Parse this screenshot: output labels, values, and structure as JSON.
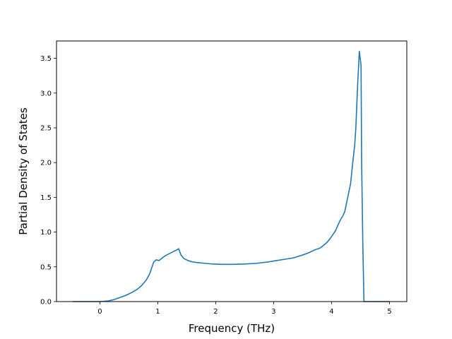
{
  "chart_data": {
    "type": "line",
    "title": "",
    "xlabel": "Frequency (THz)",
    "ylabel": "Partial Density of States",
    "xlim": [
      -0.75,
      5.3
    ],
    "ylim": [
      0.0,
      3.75
    ],
    "xticks": [
      0,
      1,
      2,
      3,
      4,
      5
    ],
    "yticks": [
      0.0,
      0.5,
      1.0,
      1.5,
      2.0,
      2.5,
      3.0,
      3.5
    ],
    "xtick_labels": [
      "0",
      "1",
      "2",
      "3",
      "4",
      "5"
    ],
    "ytick_labels": [
      "0.0",
      "0.5",
      "1.0",
      "1.5",
      "2.0",
      "2.5",
      "3.0",
      "3.5"
    ],
    "grid": false,
    "line_color": "#1f77b4",
    "series": [
      {
        "x": [
          -0.47,
          -0.2,
          0.0,
          0.15,
          0.25,
          0.35,
          0.45,
          0.55,
          0.65,
          0.72,
          0.8,
          0.86,
          0.9,
          0.93,
          0.97,
          1.02,
          1.08,
          1.13,
          1.2,
          1.27,
          1.32,
          1.36,
          1.4,
          1.45,
          1.52,
          1.6,
          1.7,
          1.82,
          1.95,
          2.1,
          2.3,
          2.5,
          2.7,
          2.9,
          3.05,
          3.2,
          3.35,
          3.5,
          3.6,
          3.7,
          3.8,
          3.85,
          3.92,
          3.97,
          4.02,
          4.07,
          4.1,
          4.15,
          4.2,
          4.23,
          4.27,
          4.3,
          4.33,
          4.36,
          4.38,
          4.4,
          4.42,
          4.45,
          4.48,
          4.51,
          4.52,
          4.54,
          4.56,
          4.6,
          5.0
        ],
        "y": [
          0.0,
          0.0,
          0.0,
          0.01,
          0.03,
          0.06,
          0.09,
          0.13,
          0.18,
          0.23,
          0.31,
          0.4,
          0.5,
          0.57,
          0.6,
          0.59,
          0.63,
          0.66,
          0.69,
          0.72,
          0.74,
          0.76,
          0.67,
          0.62,
          0.59,
          0.57,
          0.56,
          0.55,
          0.54,
          0.535,
          0.535,
          0.54,
          0.55,
          0.57,
          0.59,
          0.61,
          0.63,
          0.67,
          0.7,
          0.74,
          0.77,
          0.8,
          0.85,
          0.9,
          0.96,
          1.02,
          1.08,
          1.17,
          1.24,
          1.3,
          1.46,
          1.58,
          1.7,
          1.95,
          2.1,
          2.25,
          2.5,
          3.1,
          3.6,
          3.4,
          2.0,
          0.85,
          0.0,
          0.0,
          0.0
        ]
      }
    ]
  }
}
